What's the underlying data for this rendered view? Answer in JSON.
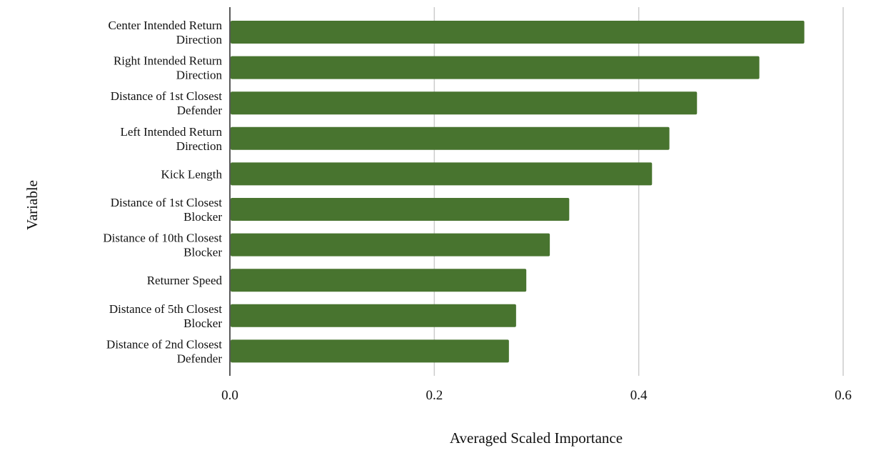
{
  "chart_data": {
    "type": "bar",
    "orientation": "horizontal",
    "title": "",
    "xlabel": "Averaged Scaled Importance",
    "ylabel": "Variable",
    "xlim": [
      0,
      0.6
    ],
    "xticks": [
      0.0,
      0.2,
      0.4,
      0.6
    ],
    "xtick_labels": [
      "0.0",
      "0.2",
      "0.4",
      "0.6"
    ],
    "grid": "vertical",
    "bar_color": "#48742f",
    "categories": [
      [
        "Center Intended Return",
        "Direction"
      ],
      [
        "Right Intended Return",
        "Direction"
      ],
      [
        "Distance of 1st Closest",
        "Defender"
      ],
      [
        "Left Intended Return",
        "Direction"
      ],
      [
        "Kick Length"
      ],
      [
        "Distance of 1st Closest",
        "Blocker"
      ],
      [
        "Distance of 10th Closest",
        "Blocker"
      ],
      [
        "Returner Speed"
      ],
      [
        "Distance of 5th Closest",
        "Blocker"
      ],
      [
        "Distance of 2nd Closest",
        "Defender"
      ]
    ],
    "values": [
      0.562,
      0.518,
      0.457,
      0.43,
      0.413,
      0.332,
      0.313,
      0.29,
      0.28,
      0.273
    ]
  }
}
